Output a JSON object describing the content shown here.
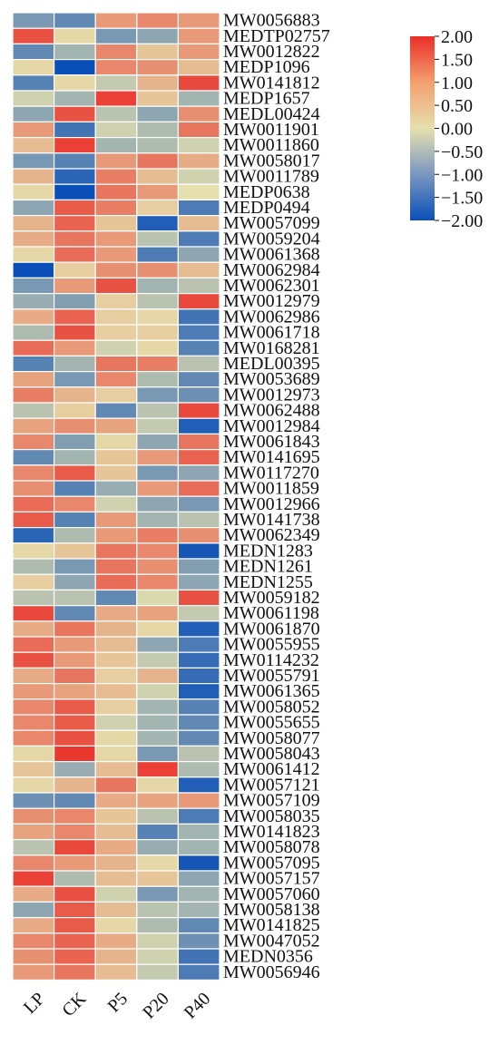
{
  "chart_data": {
    "type": "heatmap",
    "title": "",
    "xlabel": "",
    "ylabel": "",
    "columns": [
      "LP",
      "CK",
      "P5",
      "P20",
      "P40"
    ],
    "rows": [
      "MW0056883",
      "MEDTP02757",
      "MW0012822",
      "MEDP1096",
      "MW0141812",
      "MEDP1657",
      "MEDL00424",
      "MW0011901",
      "MW0011860",
      "MW0058017",
      "MW0011789",
      "MEDP0638",
      "MEDP0494",
      "MW0057099",
      "MW0059204",
      "MW0061368",
      "MW0062984",
      "MW0062301",
      "MW0012979",
      "MW0062986",
      "MW0061718",
      "MW0168281",
      "MEDL00395",
      "MW0053689",
      "MW0012973",
      "MW0062488",
      "MW0012984",
      "MW0061843",
      "MW0141695",
      "MW0117270",
      "MW0011859",
      "MW0012966",
      "MW0141738",
      "MW0062349",
      "MEDN1283",
      "MEDN1261",
      "MEDN1255",
      "MW0059182",
      "MW0061198",
      "MW0061870",
      "MW0055955",
      "MW0114232",
      "MW0055791",
      "MW0061365",
      "MW0058052",
      "MW0055655",
      "MW0058077",
      "MW0058043",
      "MW0061412",
      "MW0057121",
      "MW0057109",
      "MW0058035",
      "MW0141823",
      "MW0058078",
      "MW0057095",
      "MW0057157",
      "MW0057060",
      "MW0058138",
      "MW0141825",
      "MW0047052",
      "MEDN0356",
      "MW0056946"
    ],
    "values": [
      [
        -1.0,
        -1.2,
        0.8,
        1.0,
        0.8
      ],
      [
        1.6,
        0.1,
        -1.0,
        -0.8,
        0.8
      ],
      [
        -1.2,
        -0.6,
        1.0,
        0.3,
        0.8
      ],
      [
        0.1,
        -2.0,
        1.0,
        0.9,
        0.4
      ],
      [
        -1.3,
        0.1,
        -0.3,
        0.5,
        1.7
      ],
      [
        -0.2,
        -0.6,
        1.8,
        0.3,
        -0.6
      ],
      [
        -0.8,
        1.6,
        -0.4,
        -0.8,
        0.9
      ],
      [
        0.8,
        -1.5,
        -0.2,
        -0.5,
        1.2
      ],
      [
        0.4,
        1.8,
        -0.6,
        -0.5,
        -0.2
      ],
      [
        -1.0,
        -1.3,
        0.8,
        1.2,
        0.6
      ],
      [
        0.5,
        -1.7,
        1.1,
        0.4,
        -0.2
      ],
      [
        0.1,
        -2.0,
        1.2,
        0.8,
        0.0
      ],
      [
        -0.8,
        1.5,
        1.1,
        0.2,
        -1.4
      ],
      [
        0.5,
        1.4,
        0.3,
        -1.8,
        0.4
      ],
      [
        0.6,
        1.2,
        0.8,
        -0.4,
        -1.4
      ],
      [
        0.1,
        1.3,
        0.8,
        -1.4,
        -0.8
      ],
      [
        -2.0,
        0.2,
        0.9,
        0.9,
        0.4
      ],
      [
        -1.0,
        0.8,
        1.6,
        -0.6,
        -0.4
      ],
      [
        -0.7,
        -0.9,
        0.2,
        -0.4,
        1.7
      ],
      [
        0.6,
        1.4,
        0.2,
        0.1,
        -1.5
      ],
      [
        -0.5,
        1.6,
        0.2,
        0.2,
        -1.4
      ],
      [
        1.3,
        0.8,
        -0.2,
        0.1,
        -1.3
      ],
      [
        -1.3,
        -0.6,
        1.2,
        1.1,
        -0.4
      ],
      [
        0.7,
        -1.0,
        1.0,
        -0.5,
        -1.2
      ],
      [
        1.1,
        0.5,
        0.2,
        -1.0,
        -1.1
      ],
      [
        -0.4,
        0.2,
        -1.2,
        -0.4,
        1.7
      ],
      [
        0.7,
        0.9,
        0.7,
        -0.3,
        -1.8
      ],
      [
        1.0,
        -0.9,
        0.1,
        -0.8,
        1.2
      ],
      [
        -1.2,
        -0.6,
        0.3,
        0.8,
        1.4
      ],
      [
        1.0,
        1.5,
        0.3,
        -1.0,
        -0.8
      ],
      [
        0.9,
        -1.3,
        -0.7,
        0.8,
        1.3
      ],
      [
        1.3,
        1.0,
        -0.2,
        -0.8,
        -1.0
      ],
      [
        1.5,
        -1.3,
        0.8,
        -0.6,
        -0.4
      ],
      [
        -1.7,
        -0.5,
        0.8,
        1.1,
        0.9
      ],
      [
        0.1,
        0.3,
        1.2,
        1.0,
        -1.9
      ],
      [
        -0.5,
        -1.0,
        1.2,
        0.9,
        -0.9
      ],
      [
        0.2,
        -0.8,
        1.3,
        1.0,
        -0.8
      ],
      [
        -0.4,
        -0.4,
        -1.2,
        -0.1,
        1.6
      ],
      [
        1.7,
        -1.2,
        0.6,
        0.7,
        -0.3
      ],
      [
        0.6,
        1.2,
        0.5,
        0.1,
        -1.8
      ],
      [
        1.3,
        0.8,
        0.4,
        -0.8,
        -1.4
      ],
      [
        1.6,
        0.8,
        0.3,
        -0.3,
        -1.6
      ],
      [
        0.6,
        1.2,
        0.2,
        0.5,
        -1.6
      ],
      [
        0.8,
        0.7,
        0.4,
        -0.2,
        -1.8
      ],
      [
        1.0,
        1.5,
        0.2,
        -0.6,
        -1.3
      ],
      [
        1.0,
        1.5,
        -0.2,
        -0.6,
        -1.2
      ],
      [
        1.0,
        1.6,
        0.1,
        -0.6,
        -1.2
      ],
      [
        0.1,
        1.9,
        0.1,
        -1.0,
        -0.4
      ],
      [
        0.3,
        -0.7,
        0.4,
        1.8,
        -0.5
      ],
      [
        0.1,
        0.5,
        1.2,
        0.1,
        -1.8
      ],
      [
        -1.1,
        -1.2,
        0.6,
        0.7,
        0.8
      ],
      [
        0.9,
        1.0,
        0.3,
        -0.4,
        -1.4
      ],
      [
        0.7,
        1.0,
        0.4,
        -1.3,
        -0.6
      ],
      [
        -0.4,
        1.7,
        0.6,
        -0.7,
        -0.6
      ],
      [
        1.0,
        0.8,
        0.5,
        0.1,
        -1.9
      ],
      [
        1.8,
        -0.5,
        0.4,
        0.3,
        -0.8
      ],
      [
        0.6,
        1.6,
        -0.2,
        -1.0,
        -0.6
      ],
      [
        -0.8,
        1.5,
        0.4,
        -0.4,
        -0.6
      ],
      [
        0.6,
        1.5,
        0.1,
        -0.5,
        -1.2
      ],
      [
        1.0,
        1.4,
        0.6,
        -0.2,
        -1.1
      ],
      [
        0.9,
        1.4,
        0.5,
        -0.2,
        -1.5
      ],
      [
        0.8,
        1.2,
        0.4,
        -0.3,
        -1.4
      ]
    ],
    "colorbar": {
      "ticks": [
        "2.00",
        "1.50",
        "1.00",
        "0.50",
        "0.00",
        "−0.50",
        "−1.00",
        "−1.50",
        "−2.00"
      ],
      "range": [
        -2.0,
        2.0
      ],
      "colors": [
        "#0a4fb8",
        "#e5e0ad",
        "#ea2e28"
      ]
    },
    "grid": false,
    "legend_position": "top-right"
  }
}
